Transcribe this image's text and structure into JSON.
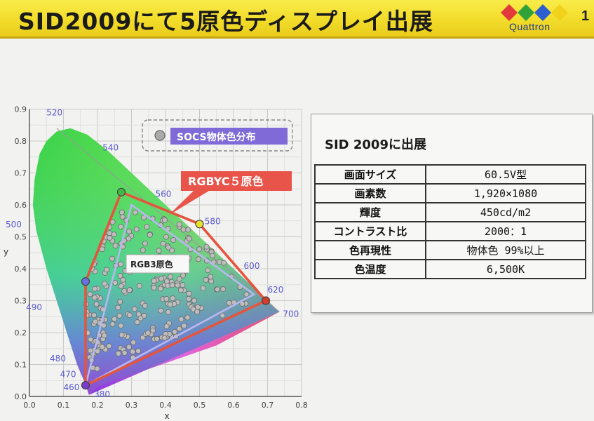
{
  "header": {
    "title": "SID2009にて5原色ディスプレイ出展",
    "logo_text": "Quattron",
    "page_number": "1",
    "logo_colors": [
      "#e23a3a",
      "#2fa33a",
      "#2b5fd0",
      "#f1d21a"
    ]
  },
  "chart": {
    "x_axis_label": "x",
    "y_axis_label": "y",
    "x_ticks": [
      "0.0",
      "0.1",
      "0.2",
      "0.3",
      "0.4",
      "0.5",
      "0.6",
      "0.7",
      "0.8"
    ],
    "y_ticks": [
      "0.0",
      "0.1",
      "0.2",
      "0.3",
      "0.4",
      "0.5",
      "0.6",
      "0.7",
      "0.8",
      "0.9"
    ],
    "wavelength_labels": [
      "520",
      "540",
      "560",
      "580",
      "600",
      "620",
      "700",
      "500",
      "490",
      "480",
      "470",
      "460",
      "380"
    ],
    "legend_socs": "SOCS物体色分布",
    "label_rgbyc": "RGBYC５原色",
    "label_rgb3": "RGB3原色"
  },
  "chart_data": {
    "type": "scatter",
    "xlabel": "x",
    "ylabel": "y",
    "xlim": [
      0,
      0.8
    ],
    "ylim": [
      0,
      0.9
    ],
    "grid": true,
    "series": [
      {
        "name": "RGBYC５原色",
        "points": [
          [
            0.165,
            0.035
          ],
          [
            0.165,
            0.36
          ],
          [
            0.27,
            0.64
          ],
          [
            0.5,
            0.54
          ],
          [
            0.695,
            0.3
          ]
        ]
      },
      {
        "name": "RGB3原色",
        "points": [
          [
            0.165,
            0.035
          ],
          [
            0.3,
            0.6
          ],
          [
            0.66,
            0.32
          ]
        ]
      }
    ]
  },
  "spec": {
    "title": "SID 2009に出展",
    "rows": [
      {
        "label": "画面サイズ",
        "value": "60.5V型"
      },
      {
        "label": "画素数",
        "value": "1,920×1080"
      },
      {
        "label": "輝度",
        "value": "450cd/m2"
      },
      {
        "label": "コントラスト比",
        "value": "2000：1"
      },
      {
        "label": "色再現性",
        "value": "物体色 99%以上"
      },
      {
        "label": "色温度",
        "value": "6,500K"
      }
    ]
  }
}
